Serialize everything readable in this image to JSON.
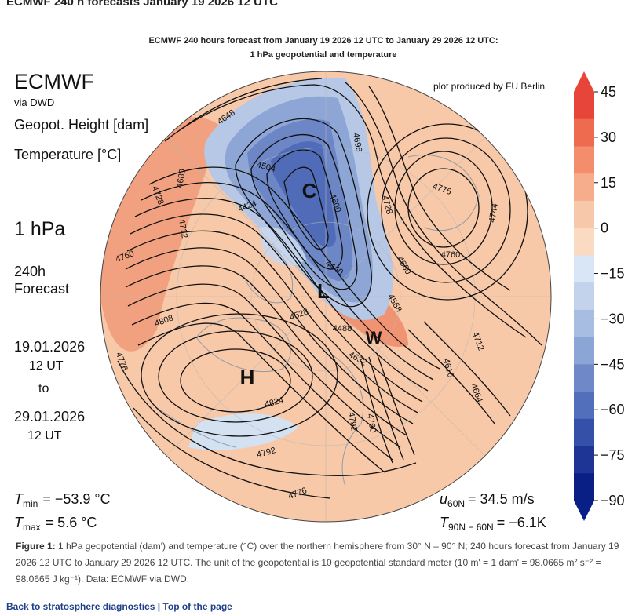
{
  "page": {
    "title": "ECMWF 240 h forecasts January 19 2026 12 UTC"
  },
  "figure": {
    "title_line1": "ECMWF 240 hours forecast from January 19 2026 12 UTC to January 29 2026 12 UTC:",
    "title_line2": "1 hPa geopotential and temperature",
    "credit": "plot produced by FU Berlin",
    "left_panel": {
      "brand": "ECMWF",
      "via": "via DWD",
      "var1": "Geopot. Height [dam]",
      "var2": "Temperature [°C]",
      "level": "1 hPa",
      "lead1": "240h",
      "lead2": "Forecast",
      "date_from": "19.01.2026",
      "time_from": "12 UT",
      "to": "to",
      "date_to": "29.01.2026",
      "time_to": "12 UT"
    },
    "stats": {
      "tmin_label": "T",
      "tmin_sub": "min",
      "tmin_value": "=  −53.9 °C",
      "tmax_label": "T",
      "tmax_sub": "max",
      "tmax_value": "=   5.6 °C",
      "u_label": "u",
      "u_sub": "60N",
      "u_value": "= 34.5 m/s",
      "dt_label": "T",
      "dt_sub": "90N − 60N",
      "dt_value": "= −6.1K"
    },
    "pressure_systems": [
      "C",
      "L",
      "W",
      "H"
    ],
    "contour_labels": [
      "4648",
      "4504",
      "4424",
      "4680",
      "4728",
      "4712",
      "4760",
      "4808",
      "4776",
      "4824",
      "4792",
      "4696",
      "4600",
      "4728",
      "4776",
      "4744",
      "4760",
      "4680",
      "4712",
      "4616",
      "4664",
      "4440",
      "4488",
      "4528",
      "4568",
      "4632",
      "4776",
      "4760",
      "4792"
    ],
    "colorbar": {
      "ticks": [
        "45",
        "30",
        "15",
        "0",
        "−15",
        "−30",
        "−45",
        "−60",
        "−75",
        "−90"
      ],
      "colors": [
        "#e8453a",
        "#ee6b4f",
        "#f38d6c",
        "#f6ad8c",
        "#f8c8aa",
        "#fbdac2",
        "#d8e6f5",
        "#c3d3ec",
        "#a7bde1",
        "#8ba5d5",
        "#6f89c8",
        "#526fbc",
        "#3450a8",
        "#1e3595",
        "#0a1f85"
      ]
    }
  },
  "caption": {
    "figure_label": "Figure 1:",
    "text": " 1 hPa geopotential (dam') and temperature (°C) over the northern hemisphere from 30° N – 90° N; 240 hours forecast from January 19 2026 12 UTC to January 29 2026 12 UTC. The unit of the geopotential is 10 geopotential standard meter (10 m' = 1 dam' = 98.0665 m² s⁻² = 98.0665 J kg⁻¹). Data: ECMWF via DWD."
  },
  "footer": {
    "back_link": "Back to stratosphere diagnostics",
    "separator": " | ",
    "top_link": "Top of the page"
  }
}
